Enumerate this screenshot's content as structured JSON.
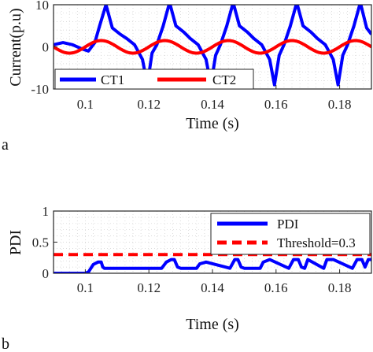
{
  "chart_data": [
    {
      "type": "line",
      "panel_label": "a",
      "xlabel": "Time (s)",
      "ylabel": "Current(p.u)",
      "xlim": [
        0.09,
        0.19
      ],
      "ylim": [
        -10,
        10
      ],
      "xticks": [
        "0.1",
        "0.12",
        "0.14",
        "0.16",
        "0.18"
      ],
      "xtick_values": [
        0.1,
        0.12,
        0.14,
        0.16,
        0.18
      ],
      "yticks": [
        "-10",
        "0",
        "10"
      ],
      "ytick_values": [
        -10,
        0,
        10
      ],
      "grid": true,
      "legend_position": "bottom-left",
      "series": [
        {
          "name": "CT1",
          "color": "#0000ff",
          "x": [
            0.09,
            0.093,
            0.096,
            0.099,
            0.101,
            0.103,
            0.1045,
            0.1065,
            0.1085,
            0.111,
            0.113,
            0.1155,
            0.118,
            0.1195,
            0.121,
            0.1225,
            0.1245,
            0.1265,
            0.1285,
            0.131,
            0.133,
            0.1355,
            0.138,
            0.1395,
            0.141,
            0.1425,
            0.1445,
            0.1465,
            0.1485,
            0.151,
            0.153,
            0.1555,
            0.158,
            0.1595,
            0.161,
            0.1625,
            0.1645,
            0.1665,
            0.1685,
            0.171,
            0.173,
            0.1755,
            0.178,
            0.1795,
            0.181,
            0.1825,
            0.1845,
            0.1865,
            0.1885,
            0.19
          ],
          "y": [
            0.5,
            1.0,
            0.5,
            -0.5,
            -1.0,
            1.0,
            5.0,
            10.0,
            4.5,
            3.0,
            2.0,
            0.5,
            -3.0,
            -9.0,
            -1.5,
            0.5,
            5.0,
            10.5,
            5.0,
            3.5,
            2.0,
            0.5,
            -3.0,
            -9.0,
            -2.0,
            0.5,
            5.0,
            10.5,
            5.0,
            3.5,
            2.0,
            0.5,
            -3.0,
            -9.0,
            -2.0,
            0.5,
            5.0,
            10.5,
            5.0,
            3.5,
            2.0,
            0.5,
            -3.0,
            -9.0,
            -2.0,
            0.5,
            5.0,
            10.5,
            4.5,
            3.0
          ]
        },
        {
          "name": "CT2",
          "color": "#ff0000",
          "amplitude": 1.5,
          "frequency_hz": 50,
          "x": [
            0.09,
            0.095,
            0.1,
            0.105,
            0.11,
            0.115,
            0.12,
            0.125,
            0.13,
            0.135,
            0.14,
            0.145,
            0.15,
            0.155,
            0.16,
            0.165,
            0.17,
            0.175,
            0.18,
            0.185,
            0.19
          ],
          "y": [
            0,
            -1.5,
            0,
            1.5,
            0,
            -1.5,
            0,
            1.5,
            0,
            -1.5,
            0,
            1.5,
            0,
            -1.5,
            0,
            1.5,
            0,
            -1.5,
            0,
            1.5,
            0
          ]
        }
      ]
    },
    {
      "type": "line",
      "panel_label": "b",
      "xlabel": "Time (s)",
      "ylabel": "PDI",
      "xlim": [
        0.09,
        0.19
      ],
      "ylim": [
        0,
        1
      ],
      "xticks": [
        "0.1",
        "0.12",
        "0.14",
        "0.16",
        "0.18"
      ],
      "xtick_values": [
        0.1,
        0.12,
        0.14,
        0.16,
        0.18
      ],
      "yticks": [
        "0",
        "0.5",
        "1"
      ],
      "ytick_values": [
        0,
        0.5,
        1
      ],
      "grid": true,
      "legend_position": "top-right",
      "series": [
        {
          "name": "PDI",
          "color": "#0000ff",
          "x": [
            0.09,
            0.1,
            0.101,
            0.1025,
            0.104,
            0.105,
            0.1055,
            0.106,
            0.115,
            0.116,
            0.118,
            0.124,
            0.1255,
            0.127,
            0.128,
            0.129,
            0.13,
            0.135,
            0.136,
            0.138,
            0.144,
            0.1455,
            0.147,
            0.148,
            0.149,
            0.15,
            0.155,
            0.156,
            0.158,
            0.164,
            0.1655,
            0.167,
            0.168,
            0.169,
            0.17,
            0.175,
            0.176,
            0.178,
            0.184,
            0.1855,
            0.187,
            0.188,
            0.189,
            0.19
          ],
          "y": [
            0.0,
            0.0,
            0.02,
            0.14,
            0.18,
            0.18,
            0.1,
            0.08,
            0.08,
            0.08,
            0.08,
            0.08,
            0.18,
            0.22,
            0.22,
            0.1,
            0.08,
            0.08,
            0.15,
            0.18,
            0.1,
            0.08,
            0.22,
            0.22,
            0.1,
            0.08,
            0.08,
            0.18,
            0.22,
            0.08,
            0.22,
            0.22,
            0.1,
            0.08,
            0.22,
            0.08,
            0.22,
            0.22,
            0.08,
            0.22,
            0.22,
            0.1,
            0.22,
            0.22
          ]
        },
        {
          "name": "Threshold=0.3",
          "color": "#ff0000",
          "style": "dashed",
          "x": [
            0.09,
            0.19
          ],
          "y": [
            0.3,
            0.3
          ]
        }
      ]
    }
  ]
}
